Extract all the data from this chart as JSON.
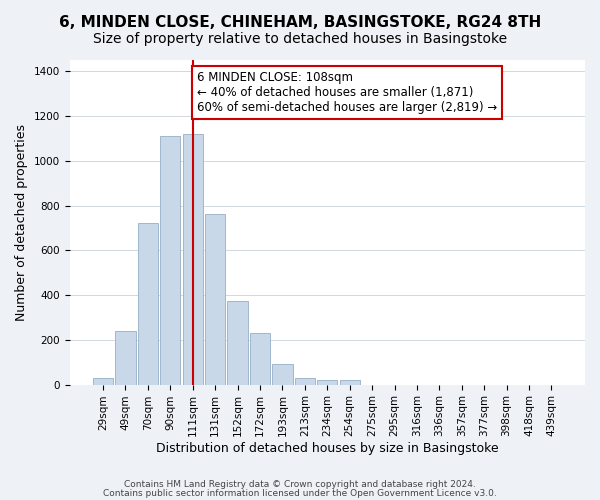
{
  "title": "6, MINDEN CLOSE, CHINEHAM, BASINGSTOKE, RG24 8TH",
  "subtitle": "Size of property relative to detached houses in Basingstoke",
  "xlabel": "Distribution of detached houses by size in Basingstoke",
  "ylabel": "Number of detached properties",
  "footer_line1": "Contains HM Land Registry data © Crown copyright and database right 2024.",
  "footer_line2": "Contains public sector information licensed under the Open Government Licence v3.0.",
  "bar_labels": [
    "29sqm",
    "49sqm",
    "70sqm",
    "90sqm",
    "111sqm",
    "131sqm",
    "152sqm",
    "172sqm",
    "193sqm",
    "213sqm",
    "234sqm",
    "254sqm",
    "275sqm",
    "295sqm",
    "316sqm",
    "336sqm",
    "357sqm",
    "377sqm",
    "398sqm",
    "418sqm",
    "439sqm"
  ],
  "bar_values": [
    30,
    240,
    720,
    1110,
    1120,
    760,
    375,
    230,
    90,
    30,
    20,
    20,
    0,
    0,
    0,
    0,
    0,
    0,
    0,
    0,
    0
  ],
  "bar_color": "#c8d8e8",
  "bar_edge_color": "#a0b8cc",
  "vline_x_index": 4,
  "vline_color": "#cc0000",
  "annotation_line1": "6 MINDEN CLOSE: 108sqm",
  "annotation_line2": "← 40% of detached houses are smaller (1,871)",
  "annotation_line3": "60% of semi-detached houses are larger (2,819) →",
  "annotation_box_color": "#ffffff",
  "annotation_box_edge_color": "#cc0000",
  "ylim": [
    0,
    1450
  ],
  "yticks": [
    0,
    200,
    400,
    600,
    800,
    1000,
    1200,
    1400
  ],
  "background_color": "#eef2f7",
  "plot_bg_color": "#ffffff",
  "title_fontsize": 11,
  "subtitle_fontsize": 10,
  "annotation_fontsize": 8.5,
  "xlabel_fontsize": 9,
  "ylabel_fontsize": 9,
  "tick_fontsize": 7.5,
  "footer_fontsize": 6.5
}
